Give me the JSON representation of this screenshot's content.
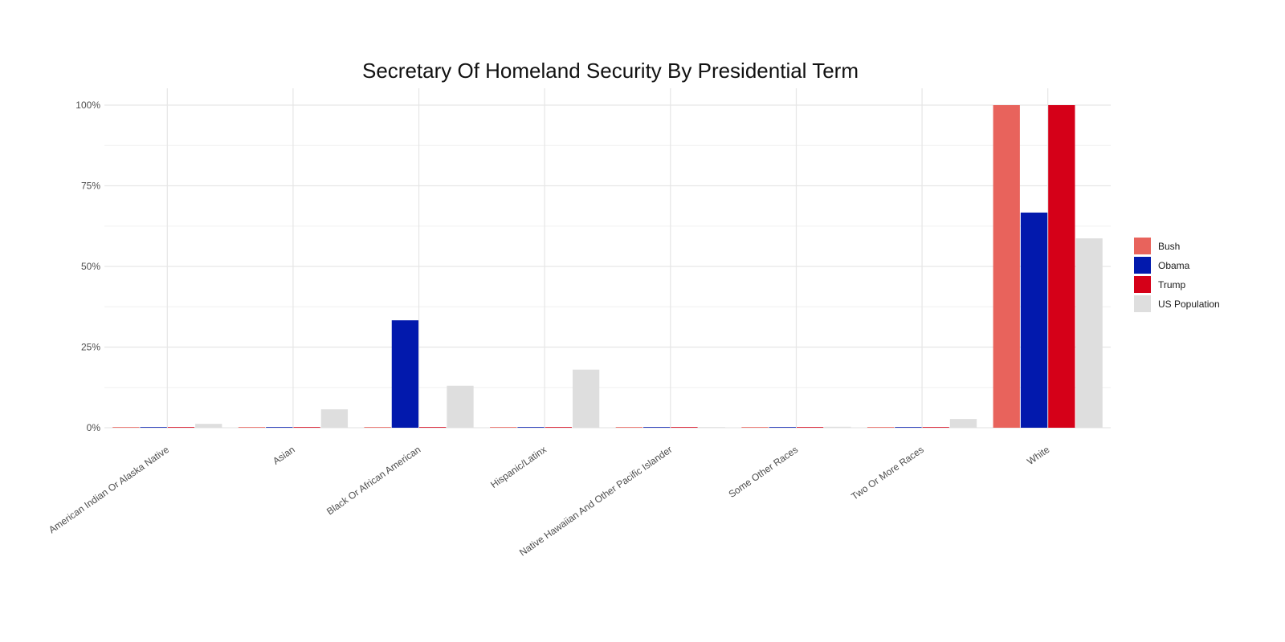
{
  "chart_data": {
    "type": "bar",
    "title": "Secretary Of Homeland Security By Presidential Term",
    "xlabel": "",
    "ylabel": "",
    "ylim": [
      0,
      1
    ],
    "y_tick_values": [
      0,
      0.25,
      0.5,
      0.75,
      1
    ],
    "y_tick_labels": [
      "0%",
      "25%",
      "50%",
      "75%",
      "100%"
    ],
    "grid": true,
    "legend_position": "right",
    "categories": [
      "American Indian Or Alaska Native",
      "Asian",
      "Black Or African American",
      "Hispanic/Latinx",
      "Native Hawaiian And Other Pacific Islander",
      "Some Other Races",
      "Two Or More Races",
      "White"
    ],
    "series": [
      {
        "name": "Bush",
        "color": "#E8635C",
        "values": [
          0,
          0,
          0,
          0,
          0,
          0,
          0,
          1.0
        ]
      },
      {
        "name": "Obama",
        "color": "#0219AD",
        "values": [
          0,
          0,
          0.333,
          0,
          0,
          0,
          0,
          0.667
        ]
      },
      {
        "name": "Trump",
        "color": "#D50018",
        "values": [
          0,
          0,
          0,
          0,
          0,
          0,
          0,
          1.0
        ]
      },
      {
        "name": "US Population",
        "color": "#DEDEDE",
        "values": [
          0.012,
          0.057,
          0.13,
          0.18,
          0.002,
          0.003,
          0.027,
          0.587
        ]
      }
    ]
  }
}
